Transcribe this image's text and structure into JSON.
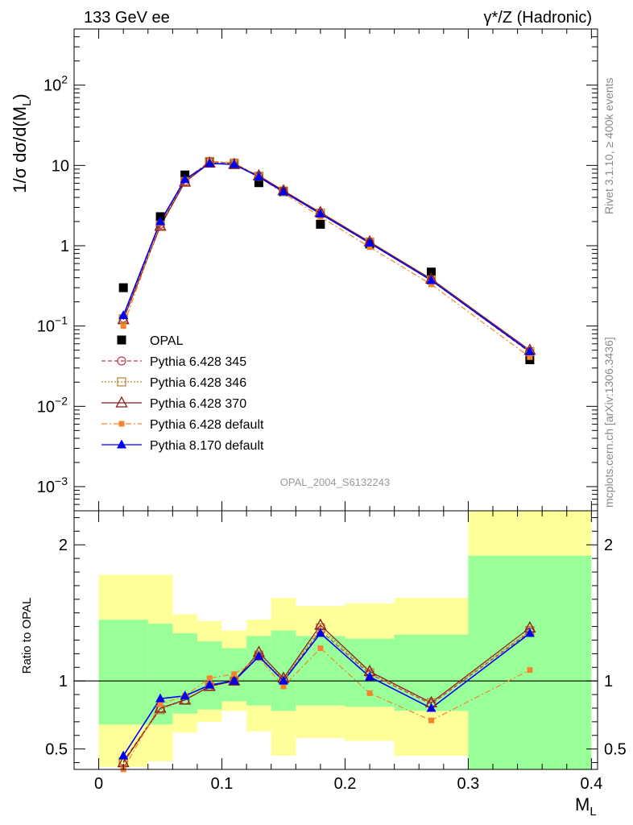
{
  "header": {
    "left": "133 GeV ee",
    "right": "γ*/Z (Hadronic)"
  },
  "side": {
    "rivet": "Rivet 3.1.10, ≥ 400k events",
    "mcplots": "mcplots.cern.ch [arXiv:1306.3436]"
  },
  "watermark": "OPAL_2004_S6132243",
  "colors": {
    "opal": "#000000",
    "p345": "#c0394a",
    "p346": "#b8812f",
    "p370": "#8b1a1a",
    "p6def": "#f5842e",
    "p8def": "#0000ee",
    "band_yellow": "#ffff99",
    "band_green": "#99ff99"
  },
  "chart_data": [
    {
      "type": "scatter",
      "ylabel": "1/σ dσ/d(ML)",
      "yscale": "log",
      "ylim": [
        0.0005,
        500
      ],
      "xlim": [
        -0.02,
        0.405
      ],
      "ytick_labels": [
        "10^-3",
        "10^-2",
        "10^-1",
        "1",
        "10",
        "10^2"
      ],
      "x": [
        0.02,
        0.05,
        0.07,
        0.09,
        0.11,
        0.13,
        0.15,
        0.18,
        0.22,
        0.27,
        0.35
      ],
      "series": [
        {
          "name": "OPAL",
          "marker": "square-filled",
          "values": [
            0.3,
            2.3,
            7.6,
            11.0,
            10.3,
            6.1,
            4.7,
            1.85,
            1.05,
            0.47,
            0.038
          ]
        },
        {
          "name": "Pythia 6.428 345",
          "marker": "circle-open",
          "line": "dashed",
          "values": [
            0.125,
            1.85,
            6.4,
            11.1,
            10.6,
            7.3,
            4.8,
            2.5,
            1.1,
            0.37,
            0.047
          ]
        },
        {
          "name": "Pythia 6.428 346",
          "marker": "square-open",
          "line": "dotted",
          "values": [
            0.123,
            1.8,
            6.3,
            11.2,
            10.7,
            7.35,
            4.8,
            2.55,
            1.11,
            0.375,
            0.048
          ]
        },
        {
          "name": "Pythia 6.428 370",
          "marker": "triangle-open",
          "line": "solid",
          "values": [
            0.12,
            1.75,
            6.2,
            10.7,
            10.3,
            7.45,
            4.85,
            2.6,
            1.12,
            0.385,
            0.05
          ]
        },
        {
          "name": "Pythia 6.428 default",
          "marker": "square-small",
          "line": "dashdot",
          "values": [
            0.1,
            1.9,
            6.6,
            11.3,
            10.8,
            7.2,
            4.5,
            2.3,
            0.96,
            0.33,
            0.041
          ]
        },
        {
          "name": "Pythia 8.170 default",
          "marker": "triangle-filled",
          "line": "solid",
          "values": [
            0.135,
            2.0,
            6.7,
            10.6,
            10.3,
            7.2,
            4.7,
            2.5,
            1.08,
            0.37,
            0.048
          ]
        }
      ],
      "legend_placement": "lower-left"
    },
    {
      "type": "line",
      "ylabel": "Ratio to OPAL",
      "xlabel": "ML",
      "ylim": [
        0.35,
        2.25
      ],
      "xlim": [
        -0.02,
        0.405
      ],
      "xtick_labels": [
        "0",
        "0.1",
        "0.2",
        "0.3",
        "0.4"
      ],
      "ytick_labels": [
        "0.5",
        "1",
        "2"
      ],
      "reference_line": 1.0,
      "bins": [
        {
          "lo": 0.0,
          "hi": 0.04,
          "green": [
            0.68,
            1.45
          ],
          "yellow": [
            0.37,
            1.78
          ]
        },
        {
          "lo": 0.04,
          "hi": 0.06,
          "green": [
            0.68,
            1.42
          ],
          "yellow": [
            0.41,
            1.78
          ]
        },
        {
          "lo": 0.06,
          "hi": 0.08,
          "green": [
            0.76,
            1.35
          ],
          "yellow": [
            0.62,
            1.49
          ]
        },
        {
          "lo": 0.08,
          "hi": 0.1,
          "green": [
            0.79,
            1.29
          ],
          "yellow": [
            0.7,
            1.44
          ]
        },
        {
          "lo": 0.1,
          "hi": 0.12,
          "green": [
            0.85,
            1.24
          ],
          "yellow": [
            0.78,
            1.37
          ]
        },
        {
          "lo": 0.12,
          "hi": 0.14,
          "green": [
            0.82,
            1.33
          ],
          "yellow": [
            0.63,
            1.45
          ]
        },
        {
          "lo": 0.14,
          "hi": 0.16,
          "green": [
            0.78,
            1.37
          ],
          "yellow": [
            0.45,
            1.61
          ]
        },
        {
          "lo": 0.16,
          "hi": 0.2,
          "green": [
            0.82,
            1.33
          ],
          "yellow": [
            0.58,
            1.55
          ]
        },
        {
          "lo": 0.2,
          "hi": 0.24,
          "green": [
            0.81,
            1.31
          ],
          "yellow": [
            0.56,
            1.57
          ]
        },
        {
          "lo": 0.24,
          "hi": 0.3,
          "green": [
            0.78,
            1.34
          ],
          "yellow": [
            0.45,
            1.61
          ]
        },
        {
          "lo": 0.3,
          "hi": 0.4,
          "green": [
            0.35,
            1.92
          ],
          "yellow": [
            0.35,
            2.25
          ]
        }
      ],
      "x": [
        0.02,
        0.05,
        0.07,
        0.09,
        0.11,
        0.13,
        0.15,
        0.18,
        0.22,
        0.27,
        0.35
      ],
      "series": [
        {
          "name": "Pythia 6.428 345",
          "values": [
            0.41,
            0.8,
            0.86,
            0.96,
            1.0,
            1.18,
            1.0,
            1.37,
            1.05,
            0.83,
            1.36
          ]
        },
        {
          "name": "Pythia 6.428 346",
          "values": [
            0.405,
            0.79,
            0.86,
            0.96,
            1.0,
            1.19,
            1.01,
            1.39,
            1.06,
            0.84,
            1.37
          ]
        },
        {
          "name": "Pythia 6.428 370",
          "values": [
            0.4,
            0.8,
            0.86,
            0.96,
            1.0,
            1.21,
            1.02,
            1.41,
            1.07,
            0.84,
            1.39
          ]
        },
        {
          "name": "Pythia 6.428 default",
          "values": [
            0.35,
            0.83,
            0.89,
            1.02,
            1.05,
            1.17,
            0.96,
            1.24,
            0.91,
            0.71,
            1.08
          ]
        },
        {
          "name": "Pythia 8.170 default",
          "values": [
            0.45,
            0.87,
            0.89,
            0.97,
            1.0,
            1.18,
            1.0,
            1.35,
            1.03,
            0.8,
            1.35
          ]
        }
      ]
    }
  ]
}
